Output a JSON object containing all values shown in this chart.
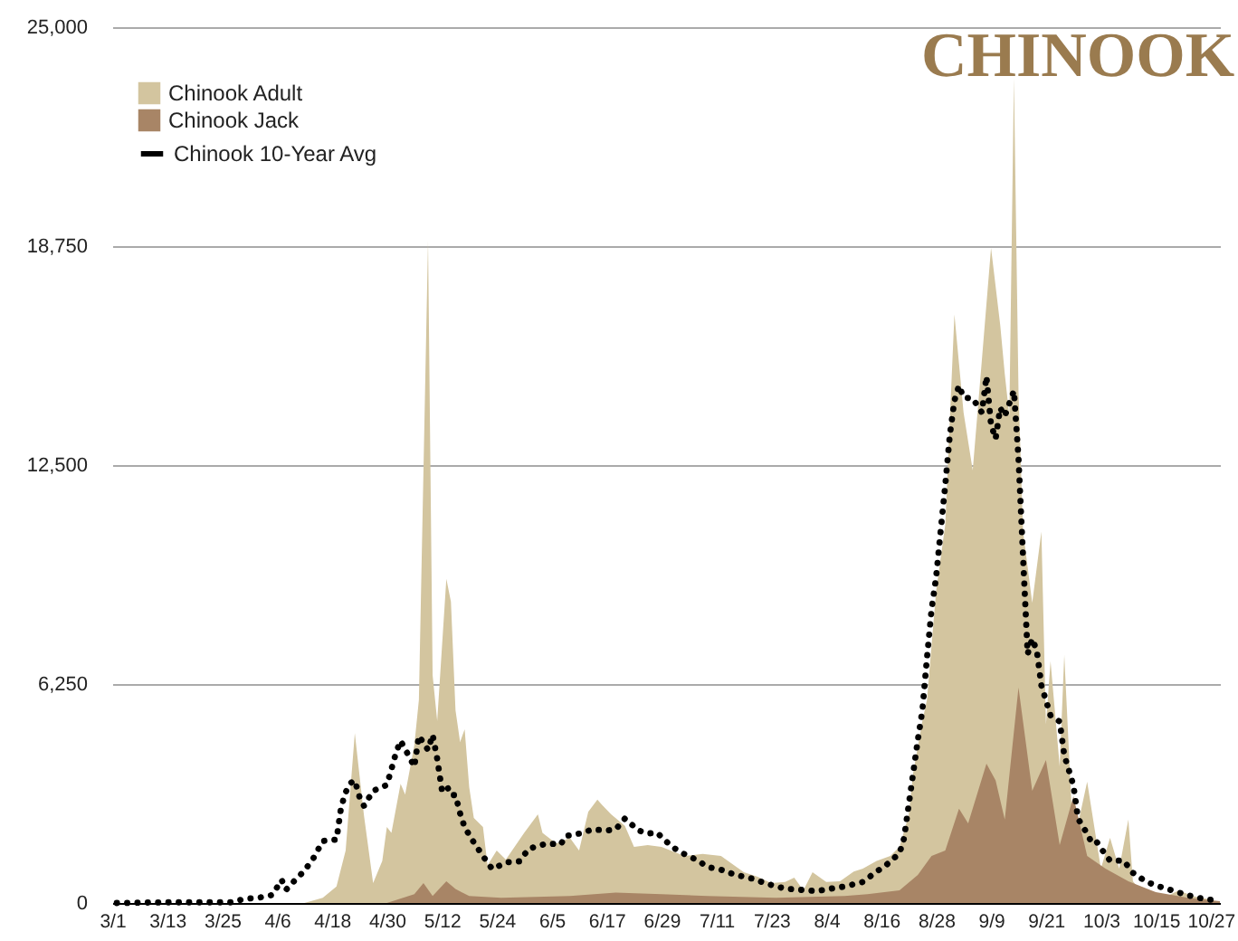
{
  "chart_data": {
    "type": "area",
    "title": "CHINOOK",
    "xlim": [
      "--03-01",
      "--10-29"
    ],
    "xticks": [
      {
        "value": "--03-01",
        "label": "3/1"
      },
      {
        "value": "--03-13",
        "label": "3/13"
      },
      {
        "value": "--03-25",
        "label": "3/25"
      },
      {
        "value": "--04-06",
        "label": "4/6"
      },
      {
        "value": "--04-18",
        "label": "4/18"
      },
      {
        "value": "--04-30",
        "label": "4/30"
      },
      {
        "value": "--05-12",
        "label": "5/12"
      },
      {
        "value": "--05-24",
        "label": "5/24"
      },
      {
        "value": "--06-05",
        "label": "6/5"
      },
      {
        "value": "--06-17",
        "label": "6/17"
      },
      {
        "value": "--06-29",
        "label": "6/29"
      },
      {
        "value": "--07-11",
        "label": "7/11"
      },
      {
        "value": "--07-23",
        "label": "7/23"
      },
      {
        "value": "--08-04",
        "label": "8/4"
      },
      {
        "value": "--08-16",
        "label": "8/16"
      },
      {
        "value": "--08-28",
        "label": "8/28"
      },
      {
        "value": "--09-09",
        "label": "9/9"
      },
      {
        "value": "--09-21",
        "label": "9/21"
      },
      {
        "value": "--10-03",
        "label": "10/3"
      },
      {
        "value": "--10-15",
        "label": "10/15"
      },
      {
        "value": "--10-27",
        "label": "10/27"
      }
    ],
    "ylim": [
      0,
      25000
    ],
    "yticks": [
      0,
      {
        "value": 6250,
        "label": "6,250"
      },
      {
        "value": 12500,
        "label": "12,500"
      },
      {
        "value": 18750,
        "label": "18,750"
      },
      {
        "value": 25000,
        "label": "25,000"
      }
    ],
    "grid": "y",
    "legend": "top left",
    "series": [
      {
        "name": "Chinook Adult",
        "color": "#d3c59f",
        "x": [
          "--03-01",
          "--04-12",
          "--04-16",
          "--04-19",
          "--04-21",
          "--04-23",
          "--04-25",
          "--04-27",
          "--04-29",
          "--04-30",
          "--05-01",
          "--05-03",
          "--05-04",
          "--05-06",
          "--05-07",
          "--05-09",
          "--05-10",
          "--05-11",
          "--05-13",
          "--05-14",
          "--05-15",
          "--05-16",
          "--05-17",
          "--05-18",
          "--05-19",
          "--05-21",
          "--05-22",
          "--05-24",
          "--05-26",
          "--05-30",
          "--06-02",
          "--06-03",
          "--06-06",
          "--06-09",
          "--06-11",
          "--06-13",
          "--06-15",
          "--06-16",
          "--06-18",
          "--06-21",
          "--06-23",
          "--06-26",
          "--06-29",
          "--07-04",
          "--07-08",
          "--07-12",
          "--07-17",
          "--07-20",
          "--07-23",
          "--07-26",
          "--07-28",
          "--07-30",
          "--08-01",
          "--08-04",
          "--08-07",
          "--08-10",
          "--08-12",
          "--08-15",
          "--08-18",
          "--08-20",
          "--08-22",
          "--08-23",
          "--08-25",
          "--08-26",
          "--08-28",
          "--08-30",
          "--09-01",
          "--09-02",
          "--09-03",
          "--09-05",
          "--09-07",
          "--09-09",
          "--09-11",
          "--09-12",
          "--09-13",
          "--09-14",
          "--09-15",
          "--09-16",
          "--09-18",
          "--09-20",
          "--09-21",
          "--09-22",
          "--09-24",
          "--09-25",
          "--09-27",
          "--09-30",
          "--10-03",
          "--10-05",
          "--10-07",
          "--10-09",
          "--10-10",
          "--10-11",
          "--10-16",
          "--10-20",
          "--10-23",
          "--10-27",
          "--10-29"
        ],
        "values": [
          0,
          0,
          150,
          470,
          1500,
          4850,
          2500,
          570,
          1200,
          2170,
          2000,
          3400,
          3100,
          4500,
          5800,
          18900,
          6500,
          5200,
          9250,
          8600,
          5500,
          4600,
          4960,
          3300,
          2430,
          2170,
          1080,
          1500,
          1240,
          2000,
          2530,
          2000,
          1700,
          1860,
          1500,
          2600,
          2950,
          2800,
          2530,
          2200,
          1600,
          1650,
          1600,
          1340,
          1400,
          1340,
          880,
          750,
          570,
          600,
          720,
          360,
          880,
          600,
          620,
          900,
          980,
          1200,
          1340,
          1600,
          2500,
          3720,
          5200,
          5800,
          8900,
          10800,
          16800,
          15400,
          14000,
          12350,
          15500,
          18700,
          16500,
          15100,
          13900,
          23550,
          14600,
          10600,
          8570,
          10600,
          5100,
          6900,
          3900,
          7080,
          1650,
          3460,
          980,
          1860,
          980,
          2380,
          620,
          460,
          100,
          360,
          200,
          100,
          0
        ]
      },
      {
        "name": "Chinook Jack",
        "color": "#a88566",
        "x": [
          "--04-30",
          "--05-06",
          "--05-08",
          "--05-10",
          "--05-13",
          "--05-15",
          "--05-18",
          "--05-25",
          "--06-09",
          "--06-19",
          "--06-29",
          "--07-09",
          "--07-24",
          "--08-08",
          "--08-13",
          "--08-20",
          "--08-24",
          "--08-27",
          "--08-30",
          "--09-02",
          "--09-04",
          "--09-08",
          "--09-10",
          "--09-12",
          "--09-15",
          "--09-18",
          "--09-21",
          "--09-24",
          "--09-27",
          "--09-30",
          "--10-04",
          "--10-09",
          "--10-15",
          "--10-22",
          "--10-29"
        ],
        "values": [
          0,
          250,
          570,
          200,
          620,
          400,
          200,
          150,
          200,
          300,
          250,
          200,
          150,
          200,
          250,
          360,
          800,
          1340,
          1500,
          2690,
          2270,
          3980,
          3500,
          2380,
          6150,
          3200,
          4080,
          1650,
          3050,
          1340,
          980,
          620,
          310,
          150,
          50
        ]
      },
      {
        "name": "Chinook 10-Year Avg",
        "type": "line",
        "line_style": "dotted",
        "color": "#000000",
        "x": [
          "--03-02",
          "--03-13",
          "--03-20",
          "--03-27",
          "--03-30",
          "--04-02",
          "--04-05",
          "--04-07",
          "--04-08",
          "--04-10",
          "--04-12",
          "--04-14",
          "--04-16",
          "--04-19",
          "--04-20",
          "--04-21",
          "--04-22",
          "--04-23",
          "--04-24",
          "--04-25",
          "--04-27",
          "--04-30",
          "--05-01",
          "--05-02",
          "--05-03",
          "--05-05",
          "--05-06",
          "--05-07",
          "--05-09",
          "--05-10",
          "--05-11",
          "--05-12",
          "--05-13",
          "--05-14",
          "--05-15",
          "--05-16",
          "--05-17",
          "--05-19",
          "--05-21",
          "--05-23",
          "--05-25",
          "--05-26",
          "--05-29",
          "--05-31",
          "--06-04",
          "--06-07",
          "--06-08",
          "--06-11",
          "--06-14",
          "--06-17",
          "--06-19",
          "--06-21",
          "--06-24",
          "--06-26",
          "--06-28",
          "--07-01",
          "--07-03",
          "--07-07",
          "--07-09",
          "--07-12",
          "--07-15",
          "--07-19",
          "--07-22",
          "--07-26",
          "--07-29",
          "--08-02",
          "--08-05",
          "--08-08",
          "--08-12",
          "--08-15",
          "--08-17",
          "--08-20",
          "--08-21",
          "--08-22",
          "--08-23",
          "--08-24",
          "--08-25",
          "--08-26",
          "--08-27",
          "--08-28",
          "--08-29",
          "--08-30",
          "--08-31",
          "--09-01",
          "--09-02",
          "--09-03",
          "--09-05",
          "--09-07",
          "--09-08",
          "--09-09",
          "--09-10",
          "--09-11",
          "--09-12",
          "--09-14",
          "--09-15",
          "--09-16",
          "--09-17",
          "--09-18",
          "--09-19",
          "--09-20",
          "--09-21",
          "--09-22",
          "--09-24",
          "--09-25",
          "--09-26",
          "--09-27",
          "--09-28",
          "--09-30",
          "--10-01",
          "--10-02",
          "--10-04",
          "--10-05",
          "--10-08",
          "--10-10",
          "--10-13",
          "--10-16",
          "--10-19",
          "--10-22",
          "--10-26",
          "--10-29"
        ],
        "values": [
          0,
          20,
          20,
          20,
          120,
          150,
          230,
          660,
          380,
          660,
          920,
          1290,
          1770,
          1810,
          2730,
          3160,
          3420,
          3500,
          3040,
          2770,
          3200,
          3370,
          3820,
          4290,
          4630,
          4150,
          3890,
          4770,
          4370,
          4800,
          4120,
          3250,
          3370,
          3080,
          3080,
          2560,
          2160,
          1730,
          1340,
          970,
          1090,
          1160,
          1190,
          1550,
          1700,
          1670,
          1910,
          1980,
          2100,
          2070,
          2100,
          2410,
          2070,
          1980,
          2010,
          1640,
          1460,
          1210,
          1030,
          950,
          810,
          690,
          550,
          410,
          380,
          340,
          410,
          470,
          600,
          900,
          1070,
          1420,
          1850,
          2790,
          3720,
          4650,
          5500,
          6990,
          8370,
          9300,
          10630,
          11930,
          13360,
          14340,
          14770,
          14430,
          14400,
          14000,
          15030,
          13650,
          13250,
          14130,
          13900,
          14620,
          12700,
          9870,
          7110,
          7540,
          7200,
          6210,
          5780,
          5350,
          5180,
          4220,
          3790,
          3360,
          2410,
          1980,
          1720,
          1760,
          1380,
          1210,
          1210,
          860,
          600,
          460,
          340,
          220,
          100,
          80
        ]
      }
    ]
  }
}
